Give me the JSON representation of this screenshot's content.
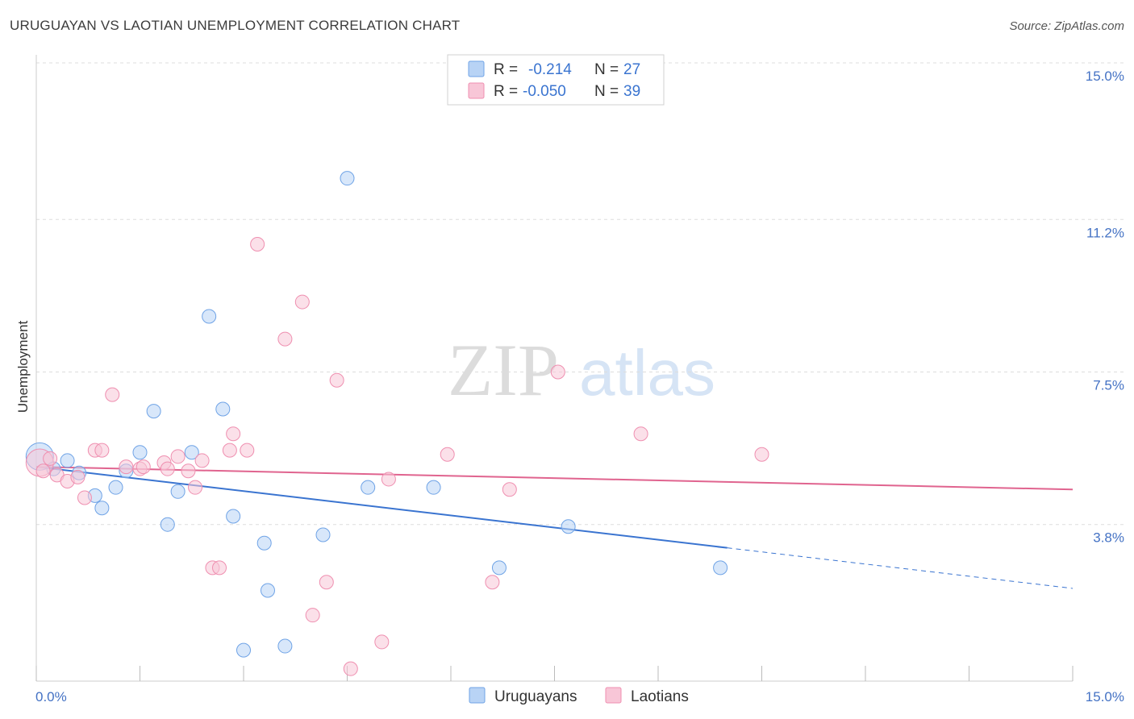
{
  "header": {
    "title": "URUGUAYAN VS LAOTIAN UNEMPLOYMENT CORRELATION CHART",
    "source": "Source: ZipAtlas.com"
  },
  "watermark": {
    "part1": "ZIP",
    "part2": "atlas"
  },
  "chart_data": {
    "type": "scatter",
    "ylabel": "Unemployment",
    "xlim": [
      0,
      15
    ],
    "ylim": [
      0,
      15
    ],
    "y_ticks": [
      {
        "value": 3.8,
        "label": "3.8%"
      },
      {
        "value": 7.5,
        "label": "7.5%"
      },
      {
        "value": 11.2,
        "label": "11.2%"
      },
      {
        "value": 15.0,
        "label": "15.0%"
      }
    ],
    "x_tick_labels": {
      "min": "0.0%",
      "max": "15.0%"
    },
    "legend": {
      "r_label": "R =",
      "n_label": "N =",
      "entries": [
        {
          "r": "-0.214",
          "n": "27"
        },
        {
          "r": "-0.050",
          "n": "39"
        }
      ]
    },
    "series": [
      {
        "name": "Uruguayans",
        "color": "#6fa3e6",
        "fill": "#b8d3f5",
        "line_color": "#3a74d0",
        "trend": {
          "x_start": 0,
          "y_start": 5.2,
          "x_solid_end": 10.0,
          "x_end": 15.0,
          "y_end": 2.25
        },
        "points": [
          {
            "x": 0.05,
            "y": 5.45,
            "big": true
          },
          {
            "x": 0.25,
            "y": 5.15
          },
          {
            "x": 0.45,
            "y": 5.35
          },
          {
            "x": 0.62,
            "y": 5.05
          },
          {
            "x": 0.85,
            "y": 4.5
          },
          {
            "x": 0.95,
            "y": 4.2
          },
          {
            "x": 1.15,
            "y": 4.7
          },
          {
            "x": 1.3,
            "y": 5.1
          },
          {
            "x": 1.5,
            "y": 5.55
          },
          {
            "x": 1.7,
            "y": 6.55
          },
          {
            "x": 1.9,
            "y": 3.8
          },
          {
            "x": 2.05,
            "y": 4.6
          },
          {
            "x": 2.25,
            "y": 5.55
          },
          {
            "x": 2.5,
            "y": 8.85
          },
          {
            "x": 2.7,
            "y": 6.6
          },
          {
            "x": 2.85,
            "y": 4.0
          },
          {
            "x": 3.0,
            "y": 0.75
          },
          {
            "x": 3.3,
            "y": 3.35
          },
          {
            "x": 3.35,
            "y": 2.2
          },
          {
            "x": 3.6,
            "y": 0.85
          },
          {
            "x": 4.15,
            "y": 3.55
          },
          {
            "x": 4.5,
            "y": 12.2
          },
          {
            "x": 4.8,
            "y": 4.7
          },
          {
            "x": 5.75,
            "y": 4.7
          },
          {
            "x": 6.7,
            "y": 2.75
          },
          {
            "x": 7.7,
            "y": 3.75
          },
          {
            "x": 9.9,
            "y": 2.75
          }
        ]
      },
      {
        "name": "Laotians",
        "color": "#ef8fb0",
        "fill": "#f8c6d7",
        "line_color": "#e0648f",
        "trend": {
          "x_start": 0,
          "y_start": 5.2,
          "x_solid_end": 15.0,
          "x_end": 15.0,
          "y_end": 4.65
        },
        "points": [
          {
            "x": 0.05,
            "y": 5.3,
            "big": true
          },
          {
            "x": 0.2,
            "y": 5.4
          },
          {
            "x": 0.3,
            "y": 5.0
          },
          {
            "x": 0.45,
            "y": 4.85
          },
          {
            "x": 0.6,
            "y": 4.95
          },
          {
            "x": 0.7,
            "y": 4.45
          },
          {
            "x": 0.85,
            "y": 5.6
          },
          {
            "x": 0.95,
            "y": 5.6
          },
          {
            "x": 1.1,
            "y": 6.95
          },
          {
            "x": 1.3,
            "y": 5.2
          },
          {
            "x": 1.5,
            "y": 5.15
          },
          {
            "x": 1.55,
            "y": 5.2
          },
          {
            "x": 1.85,
            "y": 5.3
          },
          {
            "x": 1.9,
            "y": 5.15
          },
          {
            "x": 2.05,
            "y": 5.45
          },
          {
            "x": 2.2,
            "y": 5.1
          },
          {
            "x": 2.3,
            "y": 4.7
          },
          {
            "x": 2.4,
            "y": 5.35
          },
          {
            "x": 2.55,
            "y": 2.75
          },
          {
            "x": 2.65,
            "y": 2.75
          },
          {
            "x": 2.8,
            "y": 5.6
          },
          {
            "x": 2.85,
            "y": 6.0
          },
          {
            "x": 3.05,
            "y": 5.6
          },
          {
            "x": 3.2,
            "y": 10.6
          },
          {
            "x": 3.6,
            "y": 8.3
          },
          {
            "x": 3.85,
            "y": 9.2
          },
          {
            "x": 4.0,
            "y": 1.6
          },
          {
            "x": 4.2,
            "y": 2.4
          },
          {
            "x": 4.35,
            "y": 7.3
          },
          {
            "x": 4.55,
            "y": 0.3
          },
          {
            "x": 5.0,
            "y": 0.95
          },
          {
            "x": 5.1,
            "y": 4.9
          },
          {
            "x": 5.95,
            "y": 5.5
          },
          {
            "x": 6.6,
            "y": 2.4
          },
          {
            "x": 6.85,
            "y": 4.65
          },
          {
            "x": 7.55,
            "y": 7.5
          },
          {
            "x": 8.75,
            "y": 6.0
          },
          {
            "x": 10.5,
            "y": 5.5
          },
          {
            "x": 0.1,
            "y": 5.1
          }
        ]
      }
    ]
  }
}
